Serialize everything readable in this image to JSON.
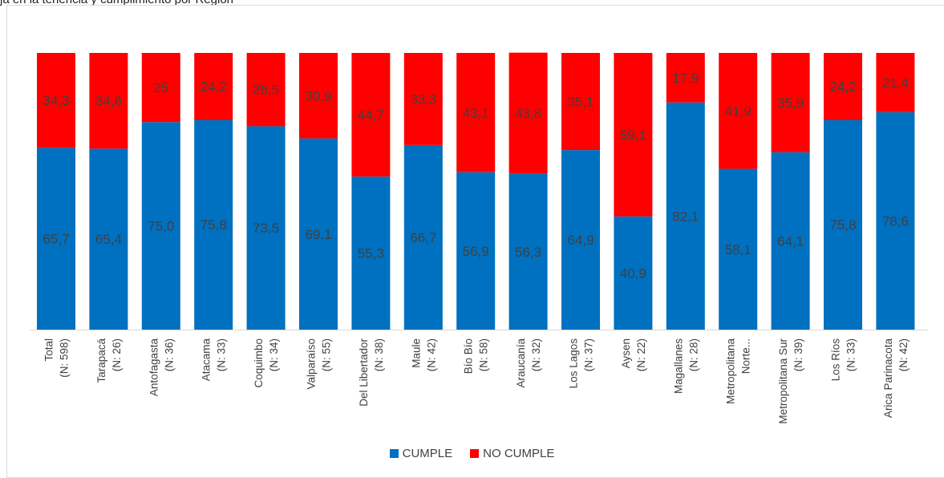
{
  "caption": "ja en la tenencia y cumplimiento por Region",
  "chart_data": {
    "type": "bar",
    "stacked": true,
    "categories": [
      [
        "Total",
        "(N: 598)"
      ],
      [
        "Tarapacá",
        "(N: 26)"
      ],
      [
        "Antofagasta",
        "(N: 36)"
      ],
      [
        "Atacama",
        "(N: 33)"
      ],
      [
        "Coquimbo",
        "(N: 34)"
      ],
      [
        "Valparaíso",
        "(N: 55)"
      ],
      [
        "Del Libertador",
        "(N: 38)"
      ],
      [
        "Maule",
        "(N: 42)"
      ],
      [
        "Bío Bío",
        "(N: 58)"
      ],
      [
        "Araucanía",
        "(N: 32)"
      ],
      [
        "Los Lagos",
        "(N: 37)"
      ],
      [
        "Aysen",
        "(N: 22)"
      ],
      [
        "Magallanes",
        "(N: 28)"
      ],
      [
        "Metropolitana",
        "Norte..."
      ],
      [
        "Metropolitana Sur",
        "(N: 39)"
      ],
      [
        "Los Ríos",
        "(N: 33)"
      ],
      [
        "Arica Parinacota",
        "(N: 42)"
      ]
    ],
    "series": [
      {
        "name": "CUMPLE",
        "color": "#0070c0",
        "values": [
          65.7,
          65.4,
          75.0,
          75.8,
          73.5,
          69.1,
          55.3,
          66.7,
          56.9,
          56.3,
          64.9,
          40.9,
          82.1,
          58.1,
          64.1,
          75.8,
          78.6
        ],
        "labels": [
          "65,7",
          "65,4",
          "75,0",
          "75,8",
          "73,5",
          "69,1",
          "55,3",
          "66,7",
          "56,9",
          "56,3",
          "64,9",
          "40,9",
          "82,1",
          "58,1",
          "64,1",
          "75,8",
          "78,6"
        ]
      },
      {
        "name": "NO CUMPLE",
        "color": "#ff0000",
        "values": [
          34.3,
          34.6,
          25,
          24.2,
          26.5,
          30.9,
          44.7,
          33.3,
          43.1,
          43.8,
          35.1,
          59.1,
          17.9,
          41.9,
          35.9,
          24.2,
          21.4
        ],
        "labels": [
          "34,3",
          "34,6",
          "25",
          "24,2",
          "26,5",
          "30,9",
          "44,7",
          "33,3",
          "43,1",
          "43,8",
          "35,1",
          "59,1",
          "17,9",
          "41,9",
          "35,9",
          "24,2",
          "21,4"
        ]
      }
    ],
    "ylim": [
      0,
      100
    ],
    "grid": false,
    "legend": "bottom"
  }
}
